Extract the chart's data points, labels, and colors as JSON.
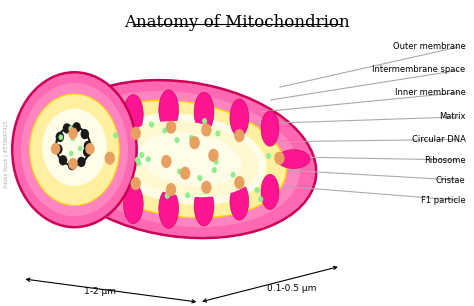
{
  "title": "Anatomy of Mitochondrion",
  "title_fontsize": 12,
  "background_color": "#ffffff",
  "labels": [
    "Outer membrane",
    "Intermembrane space",
    "Inner membrane",
    "Matrix",
    "Circular DNA",
    "Ribosome",
    "Cristae",
    "F1 particle"
  ],
  "outer_color": "#FF69B4",
  "outer_edge": "#CC0055",
  "inter_color": "#FFB3D9",
  "inner_color": "#FFF0A0",
  "inner_edge": "#FFD700",
  "matrix_color": "#FFFDE0",
  "cristae_color": "#FF1493",
  "cristae_edge": "#CC0055",
  "dna_color": "#1a1a1a",
  "ribosome_green": "#90EE90",
  "f1_color": "#E8A060",
  "dim_label_left": "1-2 μm",
  "dim_label_right": "0.1-0.5 μm",
  "watermark": "Adobe Stock | #578647425",
  "line_color": "#aaaaaa",
  "label_fontsize": 6.0,
  "dim_fontsize": 6.5
}
